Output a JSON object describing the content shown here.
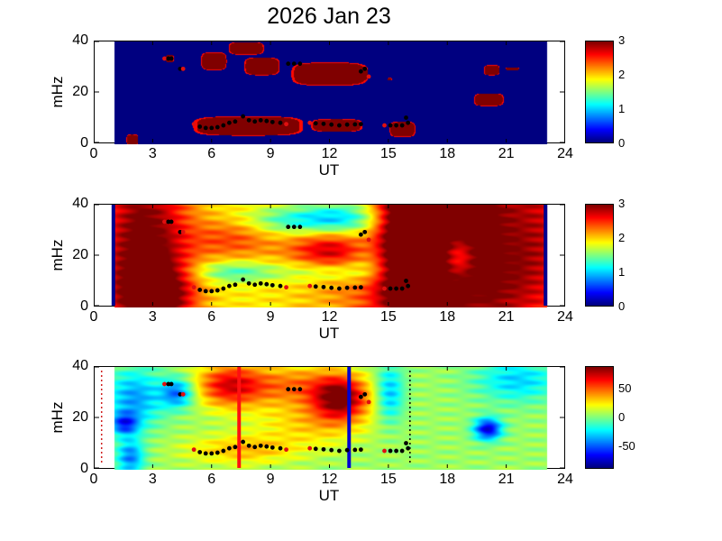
{
  "title": "2026 Jan 23",
  "chart_data": [
    {
      "type": "heatmap",
      "name": "panel-1",
      "xlabel": "UT",
      "ylabel": "mHz",
      "xlim": [
        0,
        24
      ],
      "ylim": [
        0,
        40
      ],
      "xticks": [
        "0",
        "3",
        "6",
        "9",
        "12",
        "15",
        "18",
        "21",
        "24"
      ],
      "yticks": [
        "0",
        "20",
        "40"
      ],
      "clim": [
        0,
        3
      ],
      "cticks": [
        "0",
        "1",
        "2",
        "3"
      ],
      "data_span": [
        1,
        23
      ],
      "mode": "binary",
      "background": 0,
      "regions": [
        [
          1.6,
          2.2,
          0,
          4
        ],
        [
          5.0,
          10.6,
          3.5,
          11
        ],
        [
          11.0,
          13.6,
          5,
          10
        ],
        [
          15.0,
          16.3,
          3,
          9
        ],
        [
          19.3,
          20.8,
          15,
          20
        ],
        [
          5.4,
          6.7,
          29,
          36
        ],
        [
          6.8,
          8.6,
          35,
          40
        ],
        [
          7.6,
          9.4,
          27,
          34
        ],
        [
          10.0,
          13.9,
          23,
          32
        ],
        [
          13.3,
          13.9,
          25,
          30
        ],
        [
          3.6,
          4.0,
          32,
          35
        ],
        [
          19.8,
          20.6,
          27,
          31
        ],
        [
          20.9,
          21.6,
          29,
          30
        ],
        [
          14.9,
          15.1,
          25,
          26
        ]
      ],
      "show_markers": true,
      "lines": []
    },
    {
      "type": "heatmap",
      "name": "panel-2",
      "xlabel": "UT",
      "ylabel": "mHz",
      "xlim": [
        0,
        24
      ],
      "ylim": [
        0,
        40
      ],
      "xticks": [
        "0",
        "3",
        "6",
        "9",
        "12",
        "15",
        "18",
        "21",
        "24"
      ],
      "yticks": [
        "0",
        "20",
        "40"
      ],
      "clim": [
        0,
        3
      ],
      "cticks": [
        "0",
        "1",
        "2",
        "3"
      ],
      "data_span": [
        1,
        23
      ],
      "mode": "smooth",
      "background": 1.9,
      "blobs": [
        [
          2.5,
          20,
          1.6,
          30,
          1.3
        ],
        [
          3.2,
          5,
          1.2,
          8,
          0.8
        ],
        [
          7,
          27,
          1.5,
          6,
          0.5
        ],
        [
          12,
          23,
          1.5,
          6,
          0.7
        ],
        [
          10.5,
          34,
          2,
          4,
          -0.8
        ],
        [
          13,
          35,
          1.5,
          6,
          -0.9
        ],
        [
          14,
          20,
          1,
          6,
          -0.6
        ],
        [
          7,
          14,
          1.5,
          3,
          -0.6
        ],
        [
          12,
          14,
          2,
          3,
          -0.5
        ],
        [
          19,
          25,
          4,
          30,
          1.5
        ],
        [
          16,
          25,
          1,
          30,
          1.2
        ],
        [
          18.5,
          20,
          0.6,
          6,
          -0.8
        ],
        [
          21,
          30,
          1,
          12,
          -0.2
        ]
      ],
      "show_markers": true,
      "lines": [
        {
          "ut": 1.0,
          "color": "#00008f",
          "style": "solid"
        },
        {
          "ut": 23.0,
          "color": "#00008f",
          "style": "solid"
        }
      ]
    },
    {
      "type": "heatmap",
      "name": "panel-3",
      "xlabel": "UT",
      "ylabel": "mHz",
      "xlim": [
        0,
        24
      ],
      "ylim": [
        0,
        40
      ],
      "xticks": [
        "0",
        "3",
        "6",
        "9",
        "12",
        "15",
        "18",
        "21",
        "24"
      ],
      "yticks": [
        "0",
        "20",
        "40"
      ],
      "clim": [
        -90,
        90
      ],
      "cticks": [
        "50",
        "0",
        "-50"
      ],
      "ctick_values": [
        50,
        0,
        -50
      ],
      "data_span": [
        1,
        23
      ],
      "mode": "smooth",
      "background": 5,
      "blobs": [
        [
          6.8,
          33,
          1.2,
          6,
          60
        ],
        [
          10,
          33,
          2,
          6,
          40
        ],
        [
          12.5,
          28,
          1,
          6,
          80
        ],
        [
          7.5,
          8,
          2,
          4,
          30
        ],
        [
          2,
          28,
          1,
          8,
          -45
        ],
        [
          1.5,
          18,
          0.5,
          3,
          -55
        ],
        [
          1.8,
          5,
          0.5,
          5,
          -50
        ],
        [
          4.2,
          30,
          0.6,
          4,
          -55
        ],
        [
          20,
          16,
          0.5,
          3,
          -80
        ],
        [
          21.5,
          35,
          1.5,
          6,
          -35
        ],
        [
          15,
          30,
          0.5,
          8,
          -40
        ],
        [
          11,
          18,
          2,
          6,
          25
        ]
      ],
      "show_markers": true,
      "lines": [
        {
          "ut": 7.4,
          "color": "#ff1010",
          "style": "solid"
        },
        {
          "ut": 13.0,
          "color": "#0000d0",
          "style": "solid"
        },
        {
          "ut": 16.1,
          "color": "#000000",
          "style": "dotted"
        },
        {
          "ut": 0.4,
          "color": "#d02020",
          "style": "dotted"
        }
      ]
    }
  ],
  "markers": [
    [
      3.6,
      33,
      "red"
    ],
    [
      3.8,
      33,
      "black"
    ],
    [
      3.95,
      33,
      "black"
    ],
    [
      4.4,
      29,
      "black"
    ],
    [
      4.55,
      29,
      "red"
    ],
    [
      5.1,
      7.5,
      "red"
    ],
    [
      5.4,
      6.5,
      "black"
    ],
    [
      5.7,
      6,
      "black"
    ],
    [
      6.0,
      6,
      "black"
    ],
    [
      6.3,
      6.3,
      "black"
    ],
    [
      6.6,
      7,
      "black"
    ],
    [
      6.9,
      8,
      "black"
    ],
    [
      7.2,
      8.5,
      "black"
    ],
    [
      7.6,
      10.5,
      "black"
    ],
    [
      7.9,
      9,
      "black"
    ],
    [
      8.2,
      8.5,
      "black"
    ],
    [
      8.5,
      9,
      "black"
    ],
    [
      8.8,
      8.7,
      "black"
    ],
    [
      9.1,
      8.3,
      "black"
    ],
    [
      9.5,
      8,
      "black"
    ],
    [
      9.8,
      7.5,
      "red"
    ],
    [
      9.9,
      31,
      "black"
    ],
    [
      10.2,
      31,
      "black"
    ],
    [
      10.5,
      31,
      "black"
    ],
    [
      11.0,
      8,
      "red"
    ],
    [
      11.3,
      7.8,
      "black"
    ],
    [
      11.7,
      7.6,
      "black"
    ],
    [
      12.1,
      7.3,
      "black"
    ],
    [
      12.5,
      7,
      "black"
    ],
    [
      12.9,
      7.3,
      "black"
    ],
    [
      13.3,
      7.4,
      "black"
    ],
    [
      13.6,
      7.5,
      "black"
    ],
    [
      13.6,
      28,
      "black"
    ],
    [
      13.8,
      29,
      "black"
    ],
    [
      14.0,
      26,
      "red"
    ],
    [
      14.8,
      7,
      "red"
    ],
    [
      15.1,
      7,
      "black"
    ],
    [
      15.4,
      7,
      "black"
    ],
    [
      15.7,
      7,
      "black"
    ],
    [
      15.9,
      10,
      "black"
    ],
    [
      16.0,
      8,
      "black"
    ]
  ]
}
